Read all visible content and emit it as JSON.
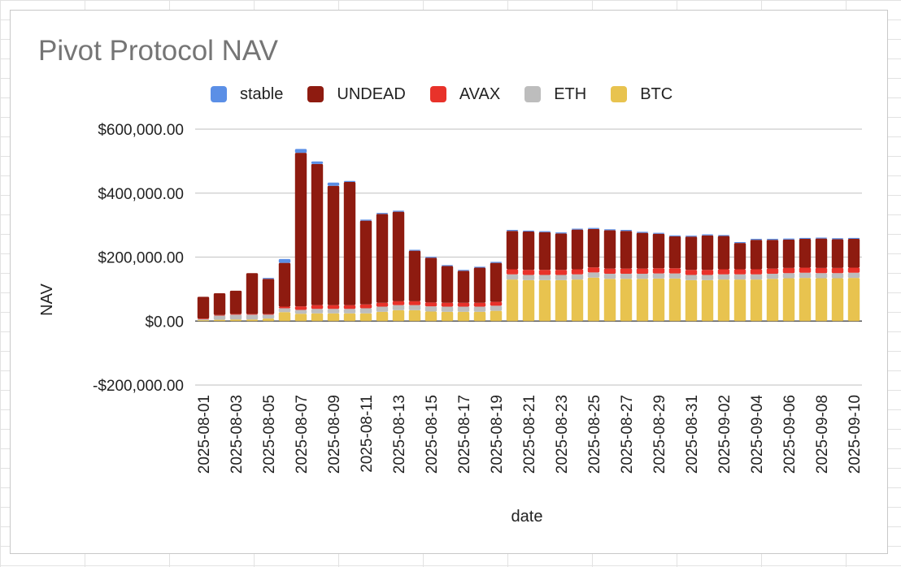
{
  "chart_data": {
    "type": "bar",
    "stacked": true,
    "title": "Pivot Protocol NAV",
    "xlabel": "date",
    "ylabel": "NAV",
    "ylim": [
      -200000,
      600000
    ],
    "yticks": [
      600000,
      400000,
      200000,
      0,
      -200000
    ],
    "ytick_labels": [
      "$600,000.00",
      "$400,000.00",
      "$200,000.00",
      "$0.00",
      "-$200,000.00"
    ],
    "legend_position": "top",
    "grid": true,
    "x": [
      "2025-08-01",
      "2025-08-02",
      "2025-08-03",
      "2025-08-04",
      "2025-08-05",
      "2025-08-06",
      "2025-08-07",
      "2025-08-08",
      "2025-08-09",
      "2025-08-10",
      "2025-08-11",
      "2025-08-12",
      "2025-08-13",
      "2025-08-14",
      "2025-08-15",
      "2025-08-16",
      "2025-08-17",
      "2025-08-18",
      "2025-08-19",
      "2025-08-20",
      "2025-08-21",
      "2025-08-22",
      "2025-08-23",
      "2025-08-24",
      "2025-08-25",
      "2025-08-26",
      "2025-08-27",
      "2025-08-28",
      "2025-08-29",
      "2025-08-30",
      "2025-08-31",
      "2025-09-01",
      "2025-09-02",
      "2025-09-03",
      "2025-09-04",
      "2025-09-05",
      "2025-09-06",
      "2025-09-07",
      "2025-09-08",
      "2025-09-09",
      "2025-09-10"
    ],
    "xtick_labels": [
      "2025-08-01",
      "2025-08-03",
      "2025-08-05",
      "2025-08-07",
      "2025-08-09",
      "2025-08-11",
      "2025-08-13",
      "2025-08-15",
      "2025-08-17",
      "2025-08-19",
      "2025-08-21",
      "2025-08-23",
      "2025-08-25",
      "2025-08-27",
      "2025-08-29",
      "2025-08-31",
      "2025-09-02",
      "2025-09-04",
      "2025-09-06",
      "2025-09-08",
      "2025-09-10"
    ],
    "series": [
      {
        "name": "BTC",
        "color": "#e8c34f",
        "values": [
          3000,
          4000,
          5000,
          5000,
          8000,
          28000,
          23000,
          24000,
          24000,
          24000,
          24000,
          29000,
          34000,
          34000,
          30000,
          29000,
          29000,
          29000,
          32000,
          130000,
          128000,
          128000,
          128000,
          130000,
          136000,
          132000,
          132000,
          132000,
          133000,
          133000,
          128000,
          128000,
          130000,
          130000,
          130000,
          132000,
          134000,
          135000,
          134000,
          134000,
          135000
        ]
      },
      {
        "name": "ETH",
        "color": "#bdbdbd",
        "values": [
          3000,
          13000,
          15000,
          15000,
          12000,
          12000,
          12000,
          14000,
          14000,
          14000,
          16000,
          16000,
          16000,
          16000,
          16000,
          16000,
          16000,
          16000,
          16000,
          16000,
          16000,
          16000,
          16000,
          16000,
          16000,
          16000,
          16000,
          16000,
          16000,
          16000,
          16000,
          16000,
          16000,
          16000,
          16000,
          16000,
          16000,
          16000,
          16000,
          16000,
          16000
        ]
      },
      {
        "name": "AVAX",
        "color": "#e8322a",
        "values": [
          2000,
          2000,
          2000,
          2000,
          2000,
          5000,
          11000,
          12000,
          12000,
          12000,
          12000,
          12000,
          12000,
          12000,
          12000,
          12000,
          12000,
          12000,
          12000,
          16000,
          16000,
          16000,
          16000,
          16000,
          16000,
          16000,
          16000,
          16000,
          16000,
          16000,
          16000,
          16000,
          16000,
          16000,
          16000,
          16000,
          16000,
          16000,
          16000,
          16000,
          16000
        ]
      },
      {
        "name": "UNDEAD",
        "color": "#8e1b10",
        "values": [
          68000,
          68000,
          73000,
          128000,
          110000,
          137000,
          480000,
          441000,
          373000,
          385000,
          262000,
          278000,
          280000,
          158000,
          140000,
          115000,
          100000,
          110000,
          122000,
          120000,
          120000,
          118000,
          114000,
          124000,
          120000,
          120000,
          118000,
          112000,
          108000,
          100000,
          104000,
          108000,
          104000,
          82000,
          92000,
          90000,
          89000,
          90000,
          92000,
          90000,
          90000
        ]
      },
      {
        "name": "stable",
        "color": "#5b8fe6",
        "values": [
          0,
          0,
          0,
          0,
          3000,
          12000,
          12000,
          8000,
          10000,
          3000,
          3000,
          3000,
          3000,
          3000,
          3000,
          3000,
          3000,
          3000,
          3000,
          3000,
          3000,
          3000,
          3000,
          3000,
          3000,
          3000,
          3000,
          3000,
          3000,
          3000,
          3000,
          3000,
          3000,
          3000,
          3000,
          3000,
          3000,
          3000,
          3000,
          3000,
          3000
        ]
      }
    ]
  },
  "legend_order": [
    "stable",
    "UNDEAD",
    "AVAX",
    "ETH",
    "BTC"
  ]
}
